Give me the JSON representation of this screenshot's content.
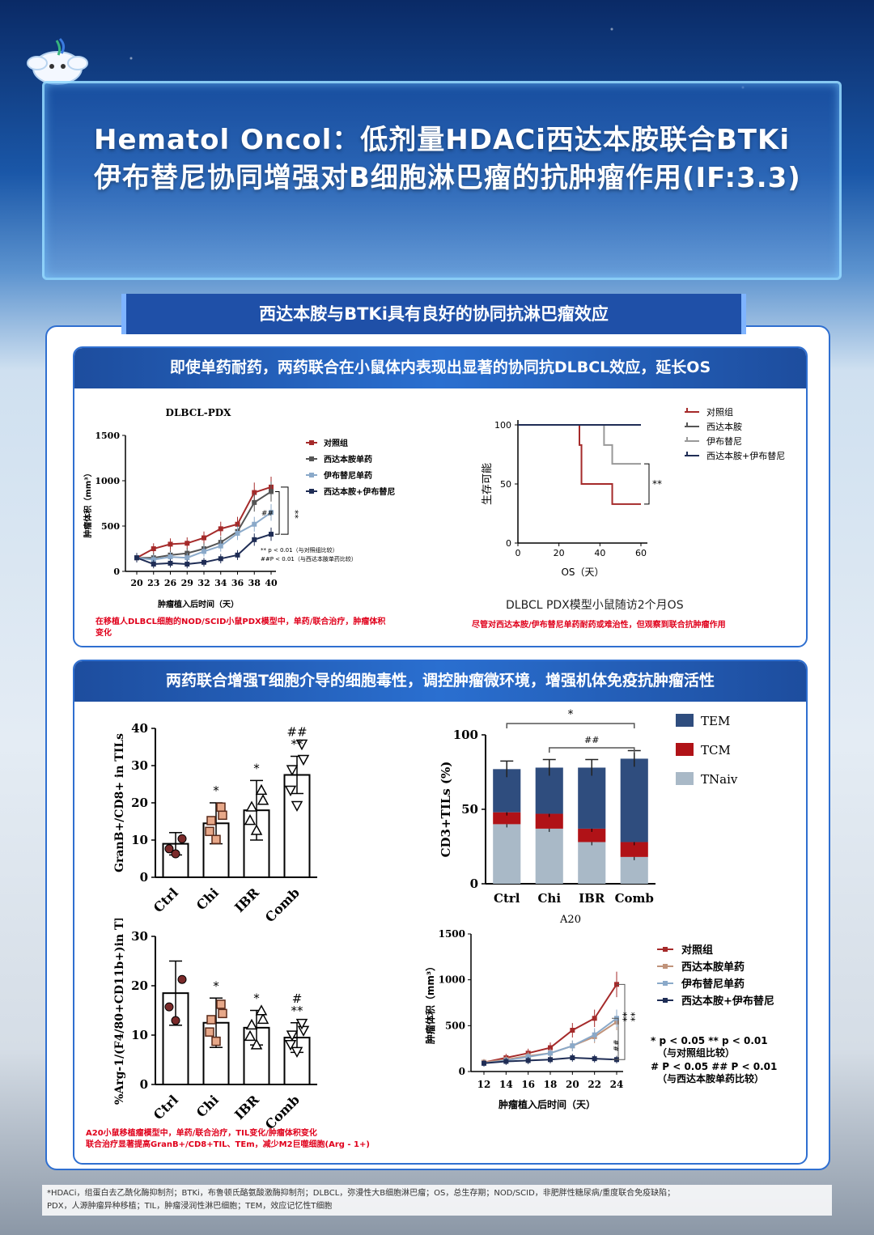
{
  "title": {
    "text": "Hematol Oncol：低剂量HDACi西达本胺联合BTKi伊布替尼协同增强对B细胞淋巴瘤的抗肿瘤作用(IF:3.3)"
  },
  "banner": {
    "text": "西达本胺与BTKi具有良好的协同抗淋巴瘤效应"
  },
  "section1": {
    "header": "即使单药耐药，两药联合在小鼠体内表现出显著的协同抗DLBCL效应，延长OS",
    "left_caption": "在移植人DLBCL细胞的NOD/SCID小鼠PDX模型中，单药/联合治疗，肿瘤体积变化",
    "right_title": "DLBCL PDX模型小鼠随访2个月OS",
    "right_caption": "尽管对西达本胺/伊布替尼单药耐药或难治性，但观察到联合抗肿瘤作用"
  },
  "section2": {
    "header": "两药联合增强T细胞介导的细胞毒性，调控肿瘤微环境，增强机体免疫抗肿瘤活性",
    "caption_line1": "A20小鼠移植瘤模型中，单药/联合治疗，TIL变化/肿瘤体积变化",
    "caption_line2": "联合治疗显著提高GranB+/CD8+TIL、TEm，减少M2巨噬细胞(Arg - 1+)"
  },
  "footer": {
    "line1": "*HDACi，组蛋白去乙酰化酶抑制剂；BTKi，布鲁顿氏酪氨酸激酶抑制剂；DLBCL，弥漫性大B细胞淋巴瘤；OS，总生存期；NOD/SCID，非肥胖性糖尿病/重度联合免疫缺陷；",
    "line2": "PDX，人源肿瘤异种移植；TIL，肿瘤浸润性淋巴细胞；TEM，效应记忆性T细胞"
  },
  "chart_data": [
    {
      "type": "line",
      "title": "DLBCL-PDX",
      "xlabel": "肿瘤植入后时间（天）",
      "ylabel": "肿瘤体积（mm³）",
      "x": [
        20,
        23,
        26,
        29,
        32,
        34,
        36,
        38,
        40
      ],
      "ylim": [
        0,
        1500
      ],
      "yticks": [
        0,
        500,
        1000,
        1500
      ],
      "series": [
        {
          "name": "对照组",
          "color": "#a52a2a",
          "values": [
            150,
            250,
            300,
            310,
            370,
            470,
            520,
            870,
            930
          ]
        },
        {
          "name": "西达本胺单药",
          "color": "#555555",
          "values": [
            150,
            150,
            180,
            200,
            250,
            320,
            440,
            760,
            880
          ]
        },
        {
          "name": "伊布替尼单药",
          "color": "#8aa9c9",
          "values": [
            150,
            130,
            160,
            150,
            220,
            280,
            420,
            520,
            650
          ]
        },
        {
          "name": "西达本胺+伊布替尼",
          "color": "#1f2d55",
          "values": [
            150,
            80,
            90,
            80,
            100,
            140,
            180,
            350,
            410
          ]
        }
      ],
      "annotations": [
        "**",
        "##",
        "** p < 0.01（与对照组比较）",
        "##P < 0.01（与西达本胺单药比较）"
      ]
    },
    {
      "type": "line",
      "title": "",
      "xlabel": "OS（天）",
      "ylabel": "生存可能",
      "x_ticks": [
        0,
        20,
        40,
        60
      ],
      "y_ticks": [
        0,
        50,
        100
      ],
      "series": [
        {
          "name": "对照组",
          "color": "#a52a2a",
          "steps": [
            [
              0,
              100
            ],
            [
              30,
              100
            ],
            [
              30,
              83
            ],
            [
              31,
              83
            ],
            [
              31,
              50
            ],
            [
              46,
              50
            ],
            [
              46,
              33
            ],
            [
              60,
              33
            ]
          ]
        },
        {
          "name": "西达本胺",
          "color": "#555555",
          "steps": [
            [
              0,
              100
            ],
            [
              60,
              100
            ]
          ]
        },
        {
          "name": "伊布替尼",
          "color": "#999999",
          "steps": [
            [
              0,
              100
            ],
            [
              42,
              100
            ],
            [
              42,
              83
            ],
            [
              46,
              83
            ],
            [
              46,
              67
            ],
            [
              60,
              67
            ]
          ]
        },
        {
          "name": "西达本胺+伊布替尼",
          "color": "#1f2d55",
          "steps": [
            [
              0,
              100
            ],
            [
              60,
              100
            ]
          ]
        }
      ],
      "annotations": [
        "**"
      ]
    },
    {
      "type": "bar",
      "title": "",
      "ylabel": "GranB+/CD8+ in TILs",
      "categories": [
        "Ctrl",
        "Chi",
        "IBR",
        "Comb"
      ],
      "values": [
        9,
        14.5,
        18,
        27.5
      ],
      "errors": [
        3,
        5.5,
        8,
        5
      ],
      "ylim": [
        0,
        40
      ],
      "yticks": [
        0,
        10,
        20,
        30,
        40
      ],
      "marks": [
        "",
        "*",
        "*",
        "##\n**"
      ]
    },
    {
      "type": "bar",
      "title": "A20",
      "ylabel": "CD3+TILs (%)",
      "categories": [
        "Ctrl",
        "Chi",
        "IBR",
        "Comb"
      ],
      "ylim": [
        0,
        100
      ],
      "yticks": [
        0,
        50,
        100
      ],
      "series": [
        {
          "name": "TNaiv",
          "color": "#a9b9c7",
          "values": [
            40,
            37,
            28,
            18
          ]
        },
        {
          "name": "TCM",
          "color": "#b01217",
          "values": [
            8,
            10,
            9,
            10
          ]
        },
        {
          "name": "TEM",
          "color": "#2f4d7e",
          "values": [
            29,
            31,
            41,
            56
          ]
        }
      ],
      "annotations": [
        "*",
        "##"
      ]
    },
    {
      "type": "bar",
      "title": "",
      "ylabel": "%Arg-1/(F4/80+CD11b+)in TI",
      "categories": [
        "Ctrl",
        "Chi",
        "IBR",
        "Comb"
      ],
      "values": [
        18.5,
        12.5,
        11.5,
        9.5
      ],
      "errors": [
        6.5,
        5,
        3.5,
        3
      ],
      "ylim": [
        0,
        30
      ],
      "yticks": [
        0,
        10,
        20,
        30
      ],
      "marks": [
        "",
        "*",
        "*",
        "#\n**"
      ]
    },
    {
      "type": "line",
      "title": "",
      "xlabel": "肿瘤植入后时间（天）",
      "ylabel": "肿瘤体积（mm³）",
      "x": [
        12,
        14,
        16,
        18,
        20,
        22,
        24
      ],
      "ylim": [
        0,
        1500
      ],
      "yticks": [
        0,
        500,
        1000,
        1500
      ],
      "series": [
        {
          "name": "对照组",
          "color": "#a52a2a",
          "values": [
            100,
            150,
            200,
            260,
            450,
            580,
            950
          ]
        },
        {
          "name": "西达本胺单药",
          "color": "#c0937a",
          "values": [
            100,
            130,
            170,
            200,
            280,
            380,
            540
          ]
        },
        {
          "name": "伊布替尼单药",
          "color": "#8aa9c9",
          "values": [
            90,
            120,
            160,
            200,
            280,
            400,
            580
          ]
        },
        {
          "name": "西达本胺+伊布替尼",
          "color": "#1f2d55",
          "values": [
            90,
            110,
            120,
            130,
            150,
            140,
            130
          ]
        }
      ],
      "annotations": [
        "**",
        "**",
        "##",
        "* p < 0.05  ** p < 0.01",
        "（与对照组比较）",
        "# P < 0.05  ## P < 0.01",
        "（与西达本胺单药比较）"
      ]
    }
  ]
}
